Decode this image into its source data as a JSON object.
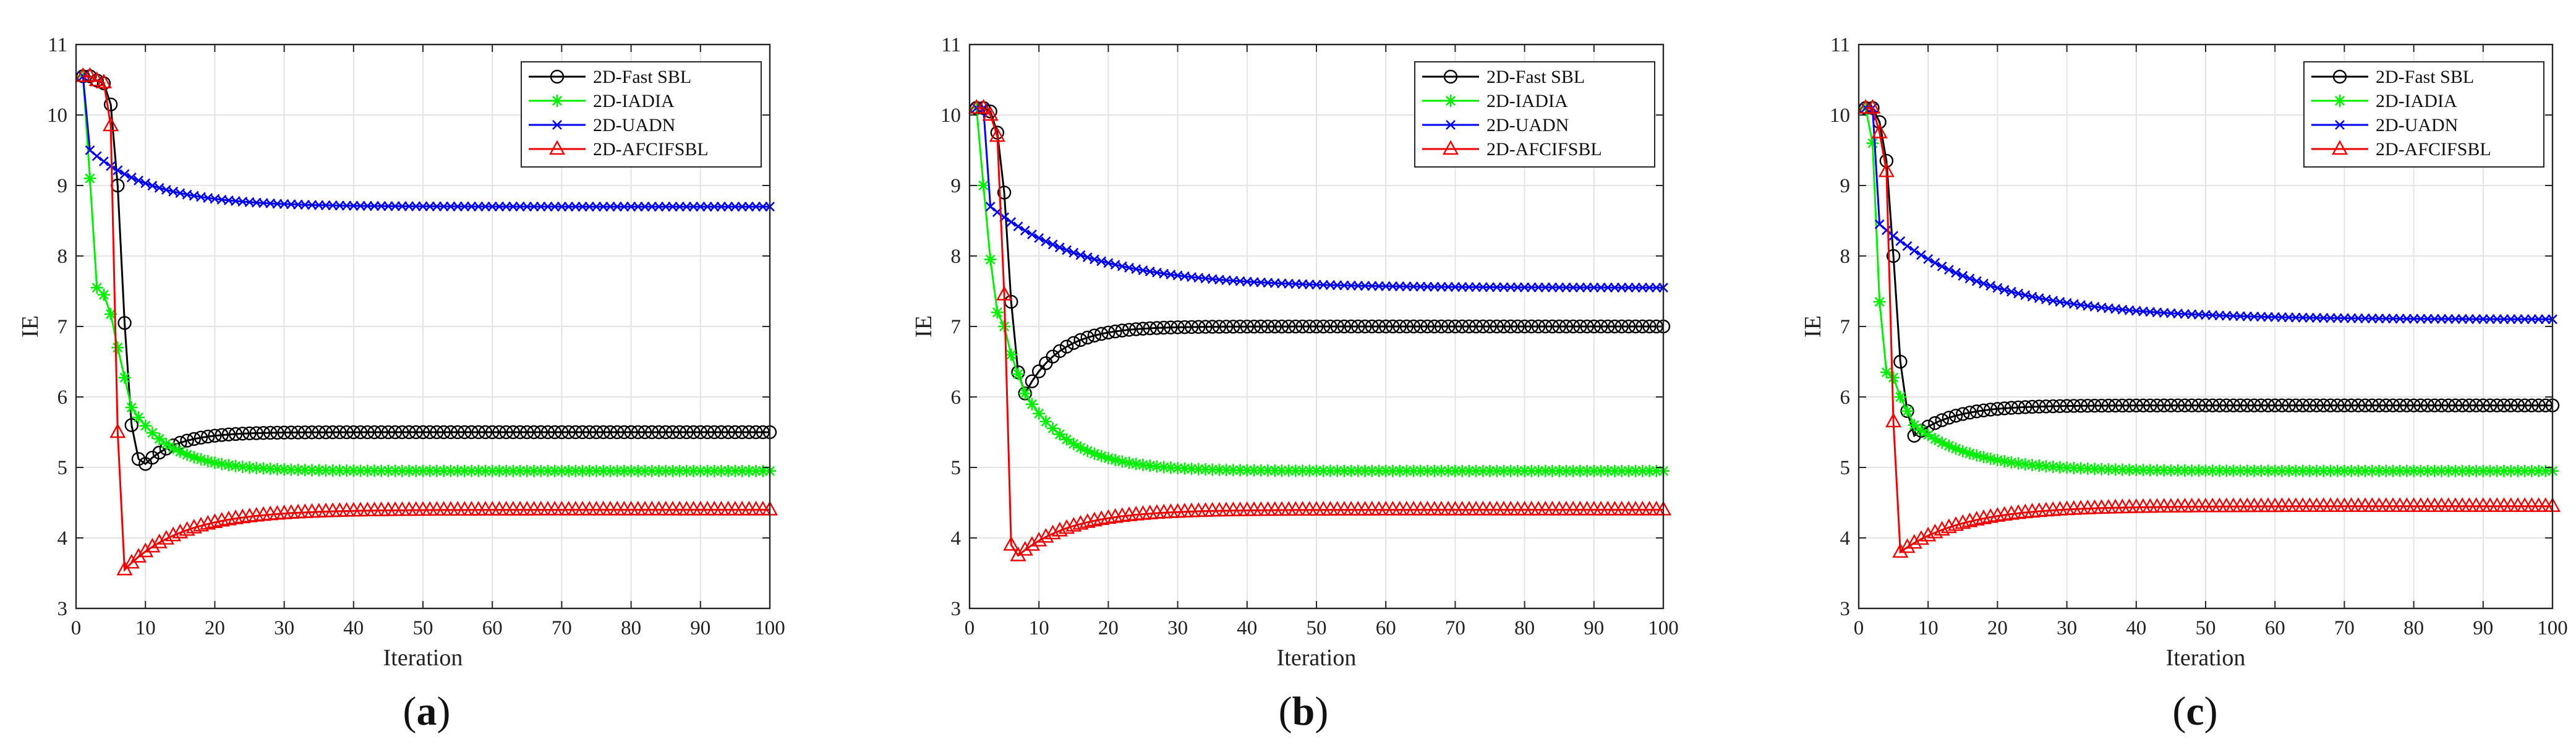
{
  "chart_data": [
    {
      "type": "line",
      "panel_label": "a",
      "xlabel": "Iteration",
      "ylabel": "IE",
      "xlim": [
        0,
        100
      ],
      "ylim": [
        3,
        11
      ],
      "xticks": [
        0,
        10,
        20,
        30,
        40,
        50,
        60,
        70,
        80,
        90,
        100
      ],
      "yticks": [
        3,
        4,
        5,
        6,
        7,
        8,
        9,
        10,
        11
      ],
      "grid": true,
      "legend_position": "top-right",
      "series": [
        {
          "name": "2D-Fast SBL",
          "color": "#000000",
          "marker": "circle",
          "shape": {
            "start": 10.55,
            "flat_until": 3,
            "drop_to_x": 6,
            "mid": 10.15,
            "min_x": 10,
            "min_y": 5.05,
            "final": 5.5,
            "rate": 0.22
          }
        },
        {
          "name": "2D-IADIA",
          "color": "#00ee00",
          "marker": "star",
          "shape": {
            "start": 10.55,
            "p2": 9.1,
            "p3": 7.55,
            "p4": 7.45,
            "p6": 6.7,
            "p8": 5.85,
            "final": 4.95,
            "decay": 0.17
          }
        },
        {
          "name": "2D-UADN",
          "color": "#0000ee",
          "marker": "x",
          "shape": {
            "start": 10.55,
            "p2": 9.5,
            "final": 8.7,
            "decay": 0.11
          }
        },
        {
          "name": "2D-AFCIFSBL",
          "color": "#ee0000",
          "marker": "triangle",
          "shape": {
            "start": 10.55,
            "flat_until": 4,
            "p5": 9.85,
            "p6": 5.5,
            "min_x": 7,
            "min_y": 3.55,
            "final": 4.4,
            "rate": 0.12
          }
        }
      ]
    },
    {
      "type": "line",
      "panel_label": "b",
      "xlabel": "Iteration",
      "ylabel": "IE",
      "xlim": [
        0,
        100
      ],
      "ylim": [
        3,
        11
      ],
      "xticks": [
        0,
        10,
        20,
        30,
        40,
        50,
        60,
        70,
        80,
        90,
        100
      ],
      "yticks": [
        3,
        4,
        5,
        6,
        7,
        8,
        9,
        10,
        11
      ],
      "grid": true,
      "legend_position": "top-right",
      "series": [
        {
          "name": "2D-Fast SBL",
          "color": "#000000",
          "marker": "circle",
          "shape": {
            "start": 10.1,
            "p3": 10.05,
            "p4": 9.75,
            "p5": 8.9,
            "p6": 7.35,
            "p7": 6.35,
            "min_x": 8,
            "min_y": 6.05,
            "final": 7.0,
            "rate": 0.2
          }
        },
        {
          "name": "2D-IADIA",
          "color": "#00ee00",
          "marker": "star",
          "shape": {
            "start": 10.1,
            "p2": 9.0,
            "p3": 7.95,
            "p4": 7.2,
            "p6": 6.6,
            "p8": 6.05,
            "final": 4.95,
            "decay": 0.15
          }
        },
        {
          "name": "2D-UADN",
          "color": "#0000ee",
          "marker": "x",
          "shape": {
            "start": 10.1,
            "p3": 8.7,
            "final": 7.55,
            "decay": 0.07
          }
        },
        {
          "name": "2D-AFCIFSBL",
          "color": "#ee0000",
          "marker": "triangle",
          "shape": {
            "start": 10.1,
            "p3": 10.0,
            "p4": 9.7,
            "p5": 7.45,
            "p6": 3.9,
            "min_x": 7,
            "min_y": 3.75,
            "final": 4.4,
            "rate": 0.13
          }
        }
      ]
    },
    {
      "type": "line",
      "panel_label": "c",
      "xlabel": "Iteration",
      "ylabel": "IE",
      "xlim": [
        0,
        100
      ],
      "ylim": [
        3,
        11
      ],
      "xticks": [
        0,
        10,
        20,
        30,
        40,
        50,
        60,
        70,
        80,
        90,
        100
      ],
      "yticks": [
        3,
        4,
        5,
        6,
        7,
        8,
        9,
        10,
        11
      ],
      "grid": true,
      "legend_position": "top-right",
      "series": [
        {
          "name": "2D-Fast SBL",
          "color": "#000000",
          "marker": "circle",
          "shape": {
            "start": 10.1,
            "p3": 9.9,
            "p4": 9.35,
            "p5": 8.0,
            "p6": 6.5,
            "p7": 5.8,
            "min_x": 8,
            "min_y": 5.45,
            "final": 5.88,
            "rate": 0.18
          }
        },
        {
          "name": "2D-IADIA",
          "color": "#00ee00",
          "marker": "star",
          "shape": {
            "start": 10.1,
            "p2": 9.6,
            "p3": 7.35,
            "p4": 6.35,
            "p6": 6.0,
            "p8": 5.6,
            "final": 4.95,
            "decay": 0.12
          }
        },
        {
          "name": "2D-UADN",
          "color": "#0000ee",
          "marker": "x",
          "shape": {
            "start": 10.1,
            "p3": 8.45,
            "final": 7.1,
            "decay": 0.065
          }
        },
        {
          "name": "2D-AFCIFSBL",
          "color": "#ee0000",
          "marker": "triangle",
          "shape": {
            "start": 10.1,
            "p3": 9.75,
            "p4": 9.2,
            "p5": 5.65,
            "p6": 3.8,
            "min_x": 6,
            "min_y": 3.8,
            "final": 4.45,
            "rate": 0.11
          }
        }
      ]
    }
  ]
}
